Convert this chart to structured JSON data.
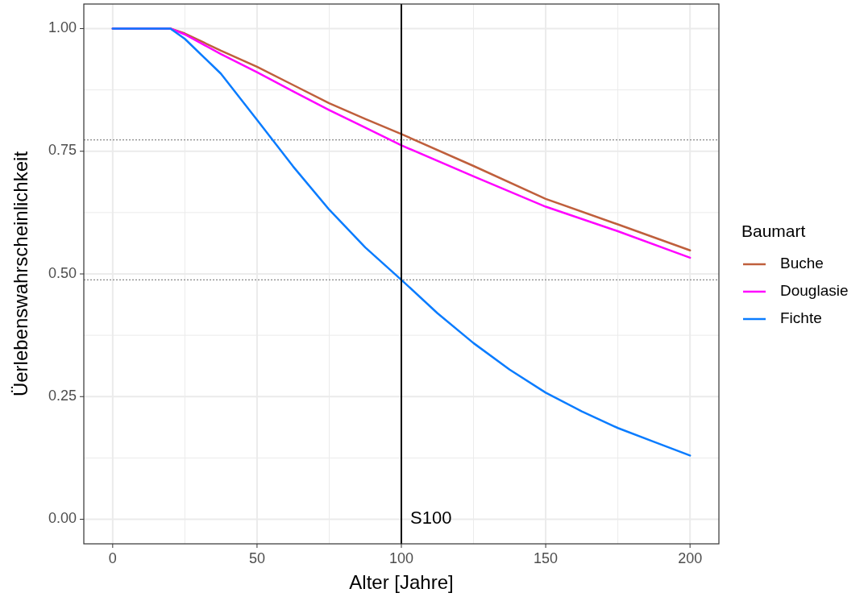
{
  "chart_data": {
    "type": "line",
    "xlabel": "Alter [Jahre]",
    "ylabel": "Üerlebenswahrscheinlichkeit",
    "legend_title": "Baumart",
    "xlim": [
      -10,
      210
    ],
    "ylim": [
      -0.05,
      1.05
    ],
    "xticks": [
      0,
      50,
      100,
      150,
      200
    ],
    "yticks": [
      {
        "value": 0,
        "label": "0.00"
      },
      {
        "value": 0.25,
        "label": "0.25"
      },
      {
        "value": 0.5,
        "label": "0.50"
      },
      {
        "value": 0.75,
        "label": "0.75"
      },
      {
        "value": 1,
        "label": "1.00"
      }
    ],
    "grid": true,
    "legend": "right",
    "line_style": "solid",
    "series": [
      {
        "name": "Buche",
        "color": "#bf5f3c",
        "x": [
          0,
          20,
          25,
          37.5,
          50,
          62.5,
          75,
          87.5,
          100,
          125,
          150,
          175,
          200
        ],
        "values": [
          1,
          1,
          0.99,
          0.955,
          0.922,
          0.885,
          0.848,
          0.816,
          0.785,
          0.72,
          0.653,
          0.601,
          0.548
        ]
      },
      {
        "name": "Douglasie",
        "color": "#ff00ff",
        "x": [
          0,
          20,
          25,
          37.5,
          50,
          62.5,
          75,
          87.5,
          100,
          125,
          150,
          175,
          200
        ],
        "values": [
          1,
          1,
          0.988,
          0.948,
          0.911,
          0.872,
          0.834,
          0.798,
          0.762,
          0.699,
          0.637,
          0.587,
          0.533
        ]
      },
      {
        "name": "Fichte",
        "color": "#0a7cff",
        "x": [
          0,
          20,
          25,
          37.5,
          50,
          62.5,
          75,
          87.5,
          100,
          112.5,
          125,
          137.5,
          150,
          162.5,
          175,
          187.5,
          200
        ],
        "values": [
          1,
          1,
          0.979,
          0.908,
          0.814,
          0.719,
          0.631,
          0.554,
          0.488,
          0.42,
          0.359,
          0.305,
          0.258,
          0.22,
          0.186,
          0.158,
          0.13
        ]
      }
    ],
    "ref_lines": [
      {
        "axis": "x",
        "value": 100,
        "color": "#000000",
        "line_style": "solid"
      },
      {
        "axis": "y",
        "value": 0.773,
        "color": "#888888",
        "line_style": "dotted"
      },
      {
        "axis": "y",
        "value": 0.488,
        "color": "#888888",
        "line_style": "dotted"
      }
    ],
    "annotations": [
      "S100"
    ]
  }
}
